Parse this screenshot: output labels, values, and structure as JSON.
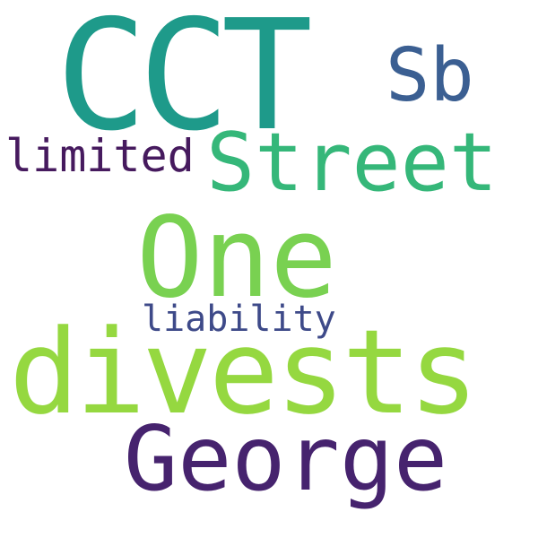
{
  "words": [
    {
      "text": "CCT",
      "color": "#1e9a8a"
    },
    {
      "text": "Sb",
      "color": "#3b5f92"
    },
    {
      "text": "limited",
      "color": "#461a5e"
    },
    {
      "text": "Street",
      "color": "#35b779"
    },
    {
      "text": "One",
      "color": "#79d151"
    },
    {
      "text": "liability",
      "color": "#3e4a89"
    },
    {
      "text": "divests",
      "color": "#95d840"
    },
    {
      "text": "George",
      "color": "#46236e"
    }
  ]
}
